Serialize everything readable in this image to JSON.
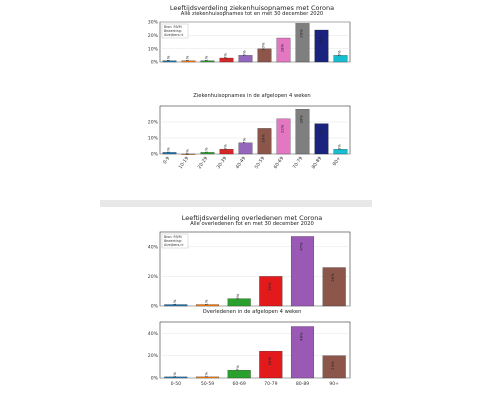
{
  "figures": [
    {
      "title": "Leeftijdsverdeling ziekenhuisopnames met Corona",
      "source_lines": [
        "Bron: RIVM",
        "Bewerking:",
        "Alzeijbers.nl"
      ],
      "categories": [
        "0-9",
        "10-19",
        "20-29",
        "30-39",
        "40-49",
        "50-59",
        "60-69",
        "70-79",
        "80-89",
        "90+"
      ],
      "colors": [
        "#1f77b4",
        "#ff7f0e",
        "#2ca02c",
        "#d62728",
        "#9467bd",
        "#8c564b",
        "#e377c2",
        "#7f7f7f",
        "#1a237e",
        "#17becf"
      ],
      "panels": [
        {
          "subtitle": "Alle ziekenhuisopnames tot en met 30 december 2020",
          "values": [
            1,
            1,
            1,
            3,
            5,
            10,
            18,
            29,
            24,
            5
          ],
          "ylim": [
            0,
            30
          ],
          "yticks": [
            0,
            10,
            20,
            30
          ]
        },
        {
          "subtitle": "Ziekenhuisopnames in de afgelopen 4 weken",
          "values": [
            1,
            0,
            1,
            3,
            7,
            16,
            22,
            28,
            19,
            3
          ],
          "ylim": [
            0,
            30
          ],
          "yticks": [
            0,
            10,
            20
          ]
        }
      ]
    },
    {
      "title": "Leeftijdsverdeling overledenen met Corona",
      "source_lines": [
        "Bron: RIVM",
        "Bewerking:",
        "Alzeijbers.nl"
      ],
      "categories": [
        "0-50",
        "50-59",
        "60-69",
        "70-79",
        "80-89",
        "90+"
      ],
      "colors": [
        "#1f77b4",
        "#ff7f0e",
        "#2ca02c",
        "#e31a1c",
        "#9b59b6",
        "#8c564b"
      ],
      "panels": [
        {
          "subtitle": "Alle overledenen tot en met 30 december 2020",
          "values": [
            1,
            1,
            5,
            20,
            47,
            26
          ],
          "ylim": [
            0,
            50
          ],
          "yticks": [
            0,
            20,
            40
          ]
        },
        {
          "subtitle": "Overledenen in de afgelopen 4 weken",
          "values": [
            1,
            1,
            7,
            24,
            46,
            20
          ],
          "ylim": [
            0,
            50
          ],
          "yticks": [
            0,
            20,
            40
          ]
        }
      ]
    }
  ],
  "chart_data": [
    {
      "type": "bar",
      "title": "Leeftijdsverdeling ziekenhuisopnames met Corona",
      "subtitle": "Alle ziekenhuisopnames tot en met 30 december 2020",
      "categories": [
        "0-9",
        "10-19",
        "20-29",
        "30-39",
        "40-49",
        "50-59",
        "60-69",
        "70-79",
        "80-89",
        "90+"
      ],
      "values": [
        1,
        1,
        1,
        3,
        5,
        10,
        18,
        29,
        24,
        5
      ],
      "ylim": [
        0,
        30
      ]
    },
    {
      "type": "bar",
      "title": "Ziekenhuisopnames in de afgelopen 4 weken",
      "categories": [
        "0-9",
        "10-19",
        "20-29",
        "30-39",
        "40-49",
        "50-59",
        "60-69",
        "70-79",
        "80-89",
        "90+"
      ],
      "values": [
        1,
        0,
        1,
        3,
        7,
        16,
        22,
        28,
        19,
        3
      ],
      "ylim": [
        0,
        30
      ]
    },
    {
      "type": "bar",
      "title": "Leeftijdsverdeling overledenen met Corona",
      "subtitle": "Alle overledenen tot en met 30 december 2020",
      "categories": [
        "0-50",
        "50-59",
        "60-69",
        "70-79",
        "80-89",
        "90+"
      ],
      "values": [
        1,
        1,
        5,
        20,
        47,
        26
      ],
      "ylim": [
        0,
        50
      ]
    },
    {
      "type": "bar",
      "title": "Overledenen in de afgelopen 4 weken",
      "categories": [
        "0-50",
        "50-59",
        "60-69",
        "70-79",
        "80-89",
        "90+"
      ],
      "values": [
        1,
        1,
        7,
        24,
        46,
        20
      ],
      "ylim": [
        0,
        50
      ]
    }
  ]
}
